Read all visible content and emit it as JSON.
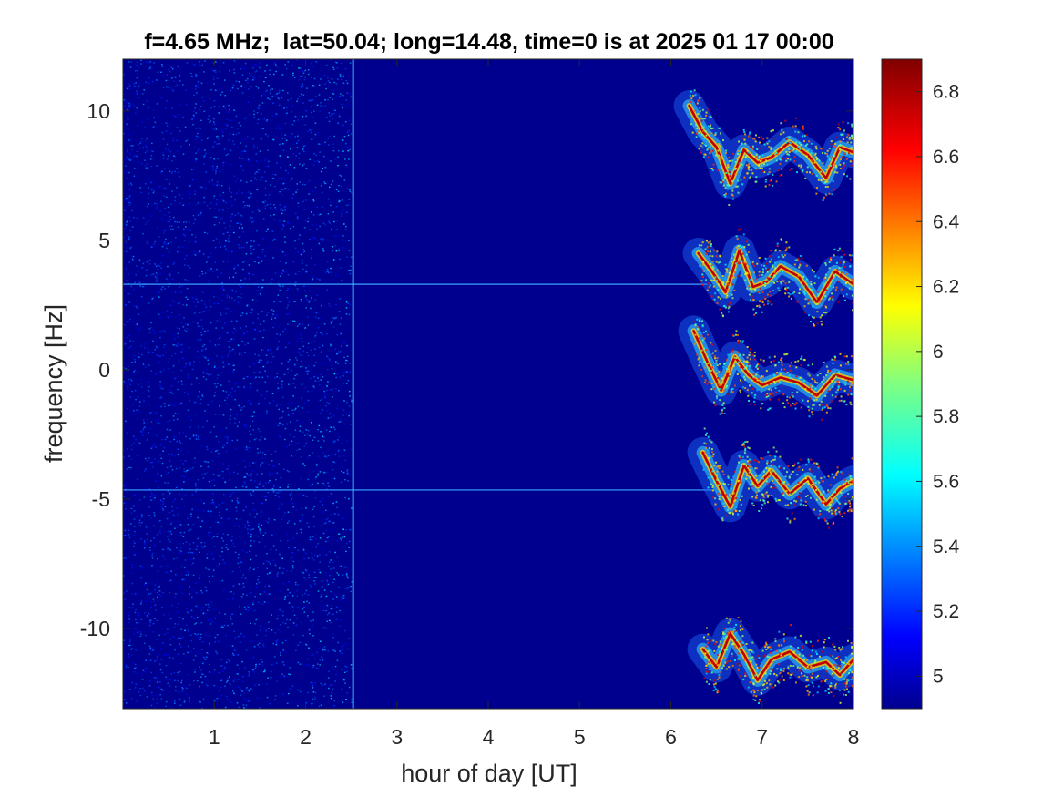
{
  "chart_data": {
    "type": "heatmap",
    "title": "f=4.65 MHz;  lat=50.04; long=14.48, time=0 is at 2025 01 17 00:00",
    "xlabel": "hour of day [UT]",
    "ylabel": "frequency [Hz]",
    "xlim": [
      0,
      8
    ],
    "ylim": [
      -13.1,
      12
    ],
    "x_ticks": [
      1,
      2,
      3,
      4,
      5,
      6,
      7,
      8
    ],
    "x_tick_labels": [
      "1",
      "2",
      "3",
      "4",
      "5",
      "6",
      "7",
      "8"
    ],
    "y_ticks": [
      10,
      5,
      0,
      -5,
      -10
    ],
    "y_tick_labels": [
      "10",
      "5",
      "0",
      "-5",
      "-10"
    ],
    "colormap": "jet",
    "clim": [
      4.9,
      6.9
    ],
    "colorbar_ticks": [
      6.8,
      6.6,
      6.4,
      6.2,
      6,
      5.8,
      5.6,
      5.4,
      5.2,
      5
    ],
    "colorbar_tick_labels": [
      "6.8",
      "6.6",
      "6.4",
      "6.2",
      "6",
      "5.8",
      "5.6",
      "5.4",
      "5.2",
      "5"
    ],
    "background_color": "#00008f",
    "features": {
      "vertical_line_x": 2.52,
      "horizontal_lines": [
        {
          "y": 3.3,
          "x_range": [
            0,
            6.4
          ]
        },
        {
          "y": -4.65,
          "x_range": [
            0,
            6.45
          ]
        }
      ],
      "noisy_region_x": [
        0,
        2.5
      ],
      "traces": [
        {
          "x": [
            6.2,
            6.35,
            6.5,
            6.65,
            6.8,
            6.95,
            7.1,
            7.3,
            7.5,
            7.7,
            7.85,
            8.0
          ],
          "y": [
            10.2,
            9.2,
            8.6,
            7.2,
            8.5,
            8.0,
            8.2,
            8.8,
            8.3,
            7.4,
            8.6,
            8.4
          ]
        },
        {
          "x": [
            6.3,
            6.45,
            6.6,
            6.75,
            6.9,
            7.05,
            7.2,
            7.4,
            7.6,
            7.8,
            8.0
          ],
          "y": [
            4.5,
            3.8,
            3.0,
            4.6,
            3.2,
            3.4,
            4.0,
            3.6,
            2.6,
            3.8,
            3.3
          ]
        },
        {
          "x": [
            6.25,
            6.4,
            6.55,
            6.7,
            6.85,
            7.0,
            7.2,
            7.4,
            7.6,
            7.8,
            8.0
          ],
          "y": [
            1.5,
            0.3,
            -0.8,
            0.5,
            -0.2,
            -0.6,
            -0.3,
            -0.5,
            -1.0,
            -0.2,
            -0.4
          ]
        },
        {
          "x": [
            6.35,
            6.5,
            6.65,
            6.8,
            6.95,
            7.1,
            7.3,
            7.5,
            7.7,
            7.85,
            8.0
          ],
          "y": [
            -3.2,
            -4.3,
            -5.3,
            -3.7,
            -4.5,
            -3.9,
            -4.8,
            -4.2,
            -5.2,
            -4.6,
            -4.3
          ]
        },
        {
          "x": [
            6.35,
            6.5,
            6.65,
            6.8,
            6.95,
            7.1,
            7.3,
            7.5,
            7.7,
            7.85,
            8.0
          ],
          "y": [
            -10.8,
            -11.5,
            -10.2,
            -11.0,
            -12.0,
            -11.2,
            -10.9,
            -11.5,
            -11.3,
            -11.8,
            -11.2
          ]
        }
      ]
    }
  }
}
